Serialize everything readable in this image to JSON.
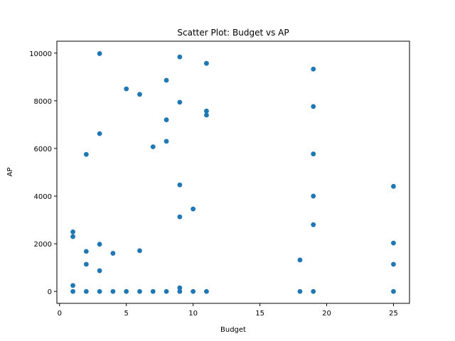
{
  "chart_data": {
    "type": "scatter",
    "title": "Scatter Plot: Budget vs AP",
    "xlabel": "Budget",
    "ylabel": "AP",
    "xlim": [
      -0.2,
      26.2
    ],
    "ylim": [
      -500,
      10500
    ],
    "xticks": [
      0,
      5,
      10,
      15,
      20,
      25
    ],
    "yticks": [
      0,
      2000,
      4000,
      6000,
      8000,
      10000
    ],
    "grid": false,
    "marker_color": "#1f77b4",
    "points": [
      {
        "x": 1,
        "y": 2500
      },
      {
        "x": 1,
        "y": 2300
      },
      {
        "x": 1,
        "y": 250
      },
      {
        "x": 1,
        "y": 0
      },
      {
        "x": 2,
        "y": 5750
      },
      {
        "x": 2,
        "y": 1680
      },
      {
        "x": 2,
        "y": 1140
      },
      {
        "x": 2,
        "y": 0
      },
      {
        "x": 3,
        "y": 9980
      },
      {
        "x": 3,
        "y": 6620
      },
      {
        "x": 3,
        "y": 1980
      },
      {
        "x": 3,
        "y": 870
      },
      {
        "x": 3,
        "y": 0
      },
      {
        "x": 4,
        "y": 1600
      },
      {
        "x": 4,
        "y": 0
      },
      {
        "x": 5,
        "y": 8500
      },
      {
        "x": 5,
        "y": 0
      },
      {
        "x": 6,
        "y": 8270
      },
      {
        "x": 6,
        "y": 1710
      },
      {
        "x": 6,
        "y": 0
      },
      {
        "x": 7,
        "y": 6070
      },
      {
        "x": 7,
        "y": 0
      },
      {
        "x": 8,
        "y": 8860
      },
      {
        "x": 8,
        "y": 7200
      },
      {
        "x": 8,
        "y": 6300
      },
      {
        "x": 8,
        "y": 0
      },
      {
        "x": 9,
        "y": 9840
      },
      {
        "x": 9,
        "y": 7940
      },
      {
        "x": 9,
        "y": 4470
      },
      {
        "x": 9,
        "y": 3130
      },
      {
        "x": 9,
        "y": 150
      },
      {
        "x": 9,
        "y": 0
      },
      {
        "x": 10,
        "y": 3460
      },
      {
        "x": 10,
        "y": 0
      },
      {
        "x": 11,
        "y": 9570
      },
      {
        "x": 11,
        "y": 7570
      },
      {
        "x": 11,
        "y": 7400
      },
      {
        "x": 11,
        "y": 0
      },
      {
        "x": 18,
        "y": 1320
      },
      {
        "x": 18,
        "y": 0
      },
      {
        "x": 19,
        "y": 9330
      },
      {
        "x": 19,
        "y": 7760
      },
      {
        "x": 19,
        "y": 5770
      },
      {
        "x": 19,
        "y": 4000
      },
      {
        "x": 19,
        "y": 2800
      },
      {
        "x": 19,
        "y": 0
      },
      {
        "x": 25,
        "y": 4410
      },
      {
        "x": 25,
        "y": 2030
      },
      {
        "x": 25,
        "y": 1140
      },
      {
        "x": 25,
        "y": 0
      }
    ]
  }
}
